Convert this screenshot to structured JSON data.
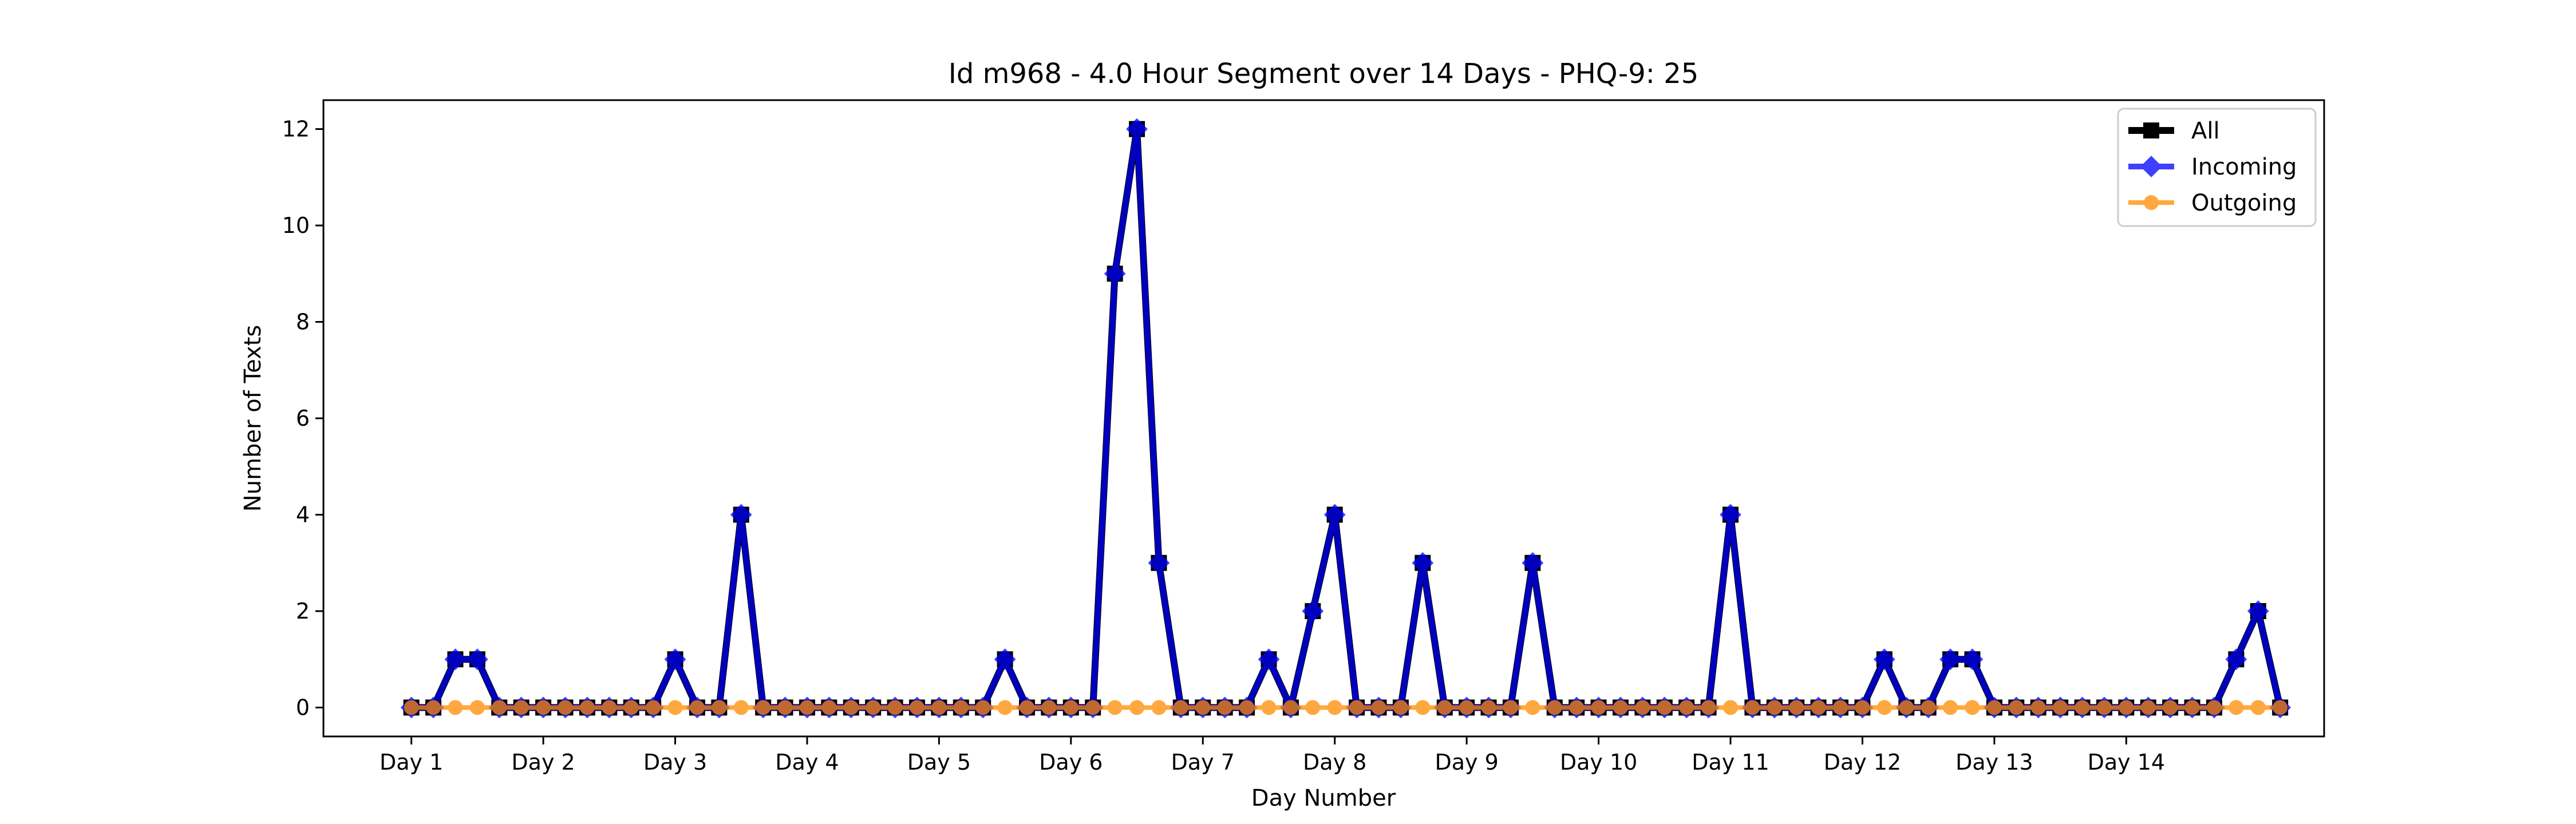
{
  "chart_data": {
    "type": "line",
    "title": "Id m968 - 4.0 Hour Segment over 14 Days - PHQ-9: 25",
    "xlabel": "Day Number",
    "ylabel": "Number of Texts",
    "x_tick_labels": [
      "Day 1",
      "Day 2",
      "Day 3",
      "Day 4",
      "Day 5",
      "Day 6",
      "Day 7",
      "Day 8",
      "Day 9",
      "Day 10",
      "Day 11",
      "Day 12",
      "Day 13",
      "Day 14"
    ],
    "y_ticks": [
      "0",
      "2",
      "4",
      "6",
      "8",
      "10",
      "12"
    ],
    "ylim": [
      -0.6,
      12.6
    ],
    "xlim": [
      -4,
      87
    ],
    "segments_per_day": 6,
    "grid": false,
    "legend_position": "top-right",
    "series": [
      {
        "name": "All",
        "color": "#000000",
        "marker": "square",
        "values": [
          0,
          0,
          1,
          1,
          0,
          0,
          0,
          0,
          0,
          0,
          0,
          0,
          1,
          0,
          0,
          4,
          0,
          0,
          0,
          0,
          0,
          0,
          0,
          0,
          0,
          0,
          0,
          1,
          0,
          0,
          0,
          0,
          9,
          12,
          3,
          0,
          0,
          0,
          0,
          1,
          0,
          2,
          4,
          0,
          0,
          0,
          3,
          0,
          0,
          0,
          0,
          3,
          0,
          0,
          0,
          0,
          0,
          0,
          0,
          0,
          4,
          0,
          0,
          0,
          0,
          0,
          0,
          1,
          0,
          0,
          1,
          1,
          0,
          0,
          0,
          0,
          0,
          0,
          0,
          0,
          0,
          0,
          0,
          1,
          2,
          0
        ]
      },
      {
        "name": "Incoming",
        "color": "#0000ff",
        "marker": "diamond",
        "values": [
          0,
          0,
          1,
          1,
          0,
          0,
          0,
          0,
          0,
          0,
          0,
          0,
          1,
          0,
          0,
          4,
          0,
          0,
          0,
          0,
          0,
          0,
          0,
          0,
          0,
          0,
          0,
          1,
          0,
          0,
          0,
          0,
          9,
          12,
          3,
          0,
          0,
          0,
          0,
          1,
          0,
          2,
          4,
          0,
          0,
          0,
          3,
          0,
          0,
          0,
          0,
          3,
          0,
          0,
          0,
          0,
          0,
          0,
          0,
          0,
          4,
          0,
          0,
          0,
          0,
          0,
          0,
          1,
          0,
          0,
          1,
          1,
          0,
          0,
          0,
          0,
          0,
          0,
          0,
          0,
          0,
          0,
          0,
          1,
          2,
          0
        ]
      },
      {
        "name": "Outgoing",
        "color": "#ff8c00",
        "marker": "circle",
        "values": [
          0,
          0,
          0,
          0,
          0,
          0,
          0,
          0,
          0,
          0,
          0,
          0,
          0,
          0,
          0,
          0,
          0,
          0,
          0,
          0,
          0,
          0,
          0,
          0,
          0,
          0,
          0,
          0,
          0,
          0,
          0,
          0,
          0,
          0,
          0,
          0,
          0,
          0,
          0,
          0,
          0,
          0,
          0,
          0,
          0,
          0,
          0,
          0,
          0,
          0,
          0,
          0,
          0,
          0,
          0,
          0,
          0,
          0,
          0,
          0,
          0,
          0,
          0,
          0,
          0,
          0,
          0,
          0,
          0,
          0,
          0,
          0,
          0,
          0,
          0,
          0,
          0,
          0,
          0,
          0,
          0,
          0,
          0,
          0,
          0,
          0
        ]
      }
    ]
  }
}
